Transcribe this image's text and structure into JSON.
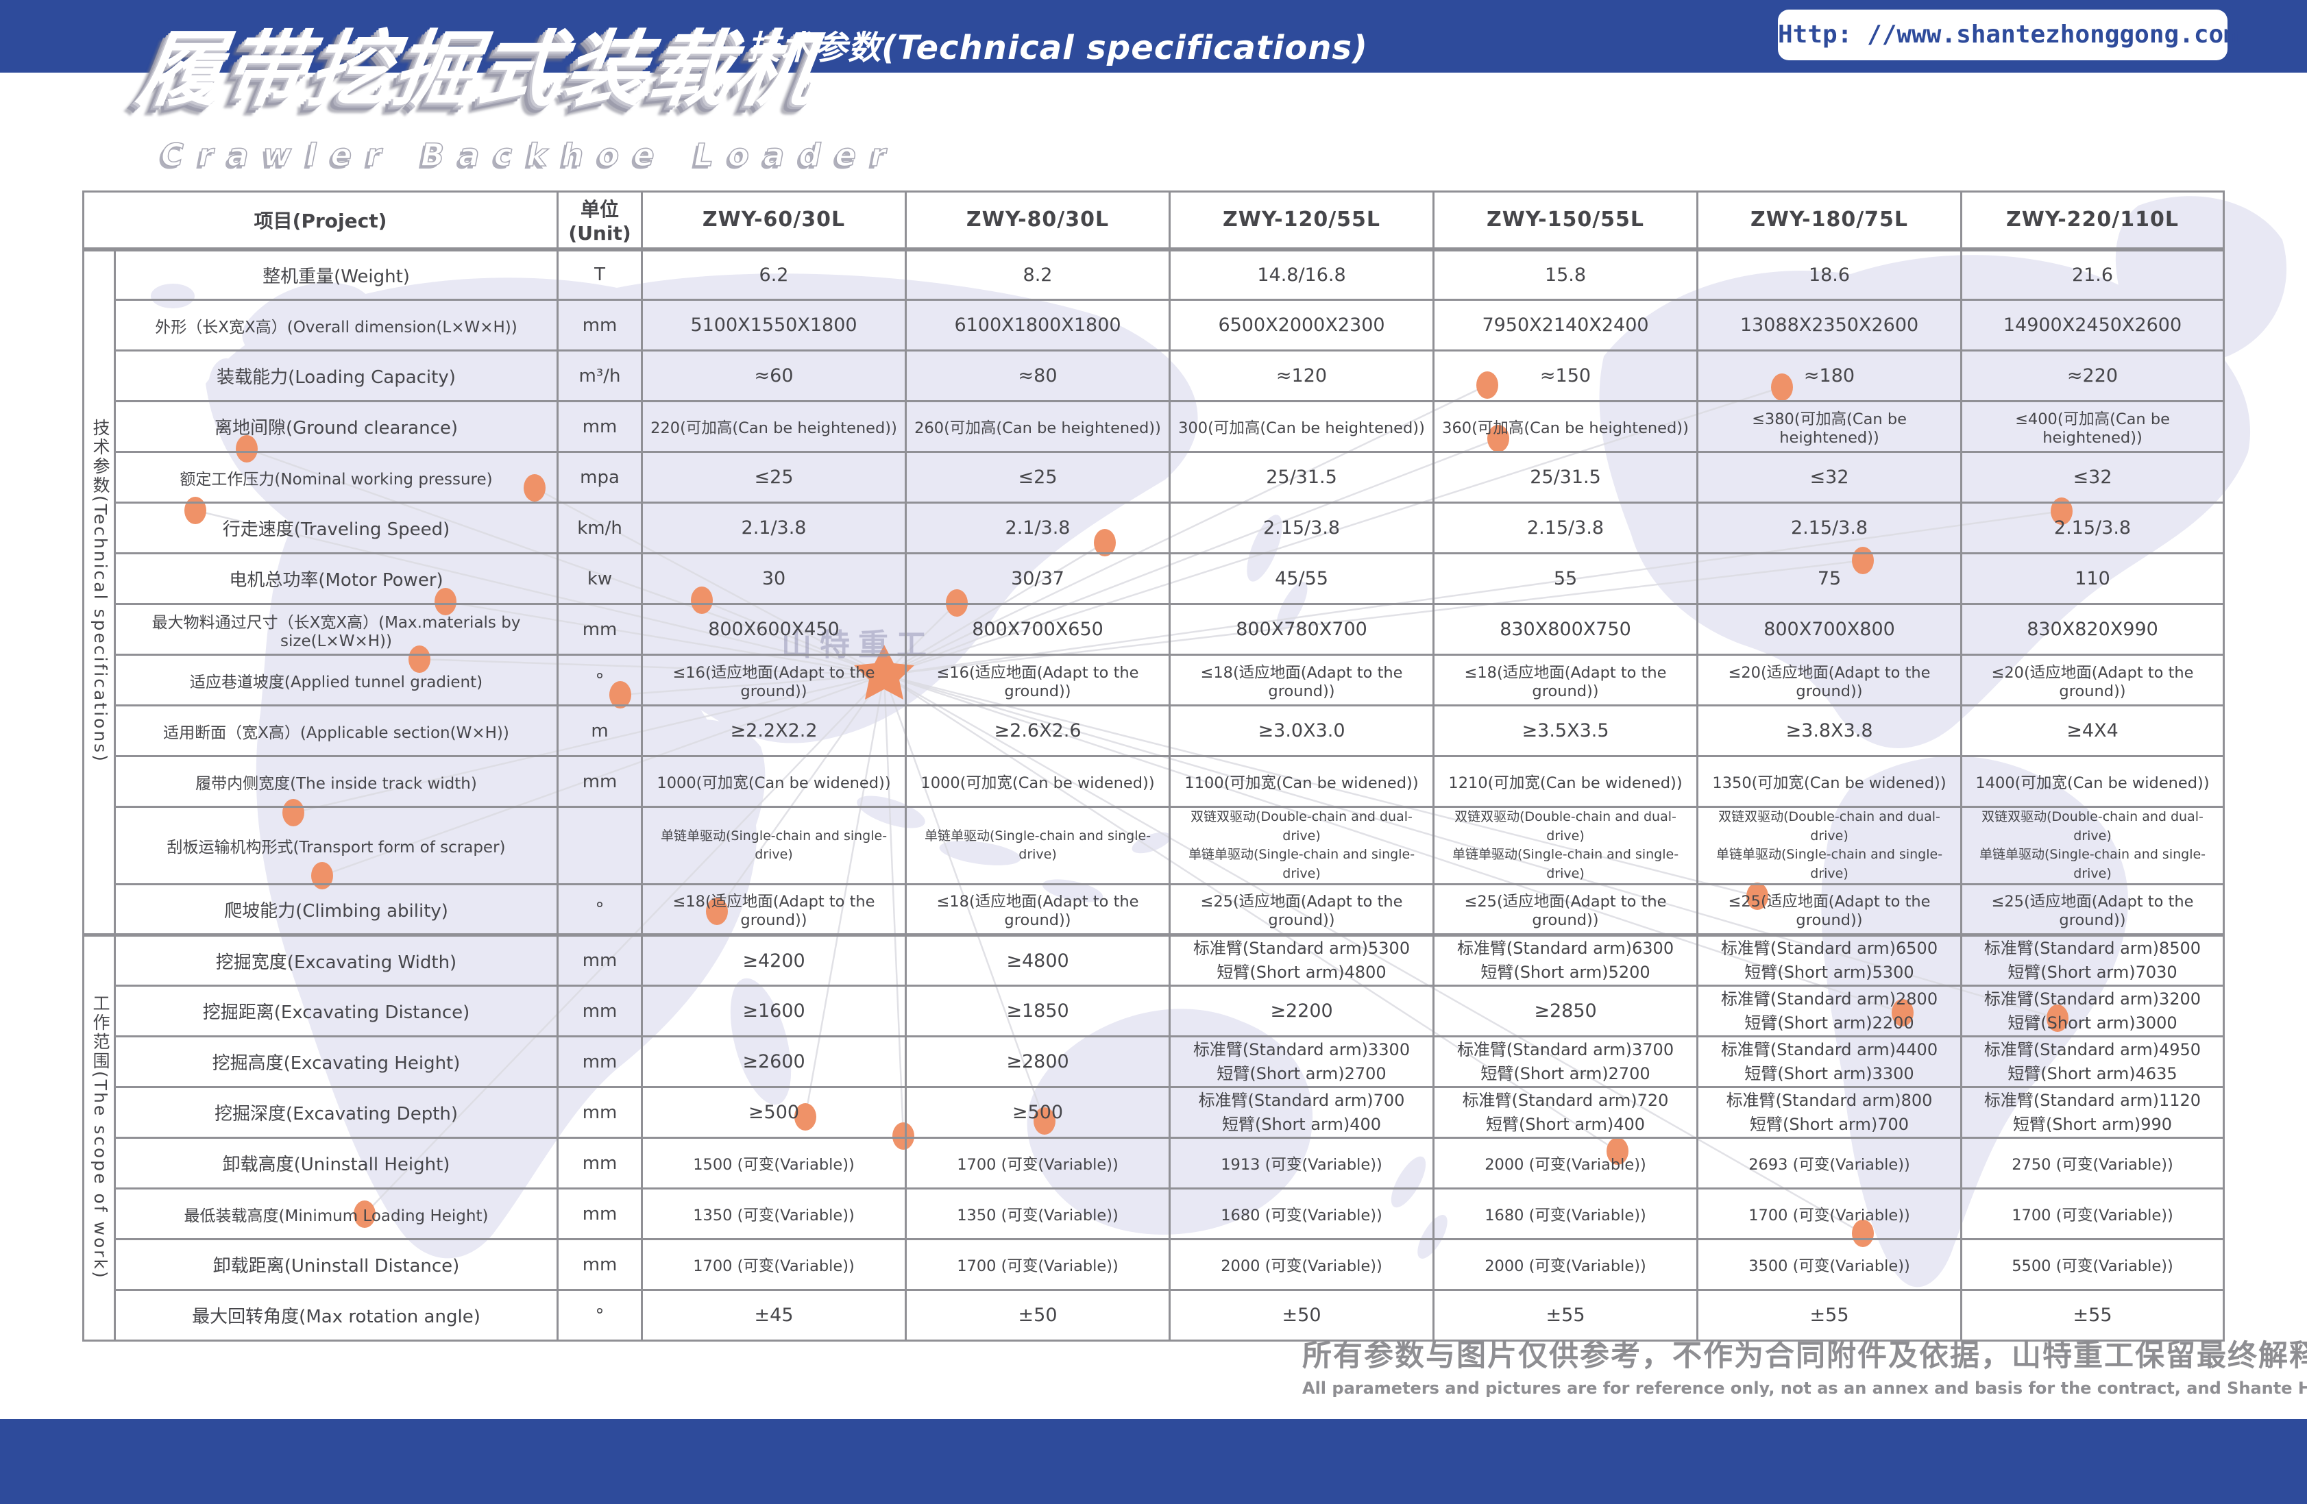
{
  "header": {
    "title_cn": "履带挖掘式装载机",
    "title_en": "Crawler Backhoe Loader",
    "subtitle": "技术参数(Technical specifications)",
    "url": "Http: //www.shantezhonggong.com"
  },
  "watermark": "山特重工",
  "table": {
    "col_project": "项目(Project)",
    "col_unit": "单位(Unit)",
    "models": [
      "ZWY-60/30L",
      "ZWY-80/30L",
      "ZWY-120/55L",
      "ZWY-150/55L",
      "ZWY-180/75L",
      "ZWY-220/110L"
    ],
    "groups": [
      {
        "label": "技术参数(Technical specifications)",
        "rows": [
          {
            "project": "整机重量(Weight)",
            "unit": "T",
            "values": [
              "6.2",
              "8.2",
              "14.8/16.8",
              "15.8",
              "18.6",
              "21.6"
            ]
          },
          {
            "project": "外形（长X宽X高）(Overall dimension(L×W×H))",
            "unit": "mm",
            "values": [
              "5100X1550X1800",
              "6100X1800X1800",
              "6500X2000X2300",
              "7950X2140X2400",
              "13088X2350X2600",
              "14900X2450X2600"
            ]
          },
          {
            "project": "装载能力(Loading Capacity)",
            "unit": "m³/h",
            "values": [
              "≈60",
              "≈80",
              "≈120",
              "≈150",
              "≈180",
              "≈220"
            ]
          },
          {
            "project": "离地间隙(Ground clearance)",
            "unit": "mm",
            "values": [
              "220(可加高(Can be heightened))",
              "260(可加高(Can be heightened))",
              "300(可加高(Can be heightened))",
              "360(可加高(Can be heightened))",
              "≤380(可加高(Can be heightened))",
              "≤400(可加高(Can be heightened))"
            ]
          },
          {
            "project": "额定工作压力(Nominal working pressure)",
            "unit": "mpa",
            "values": [
              "≤25",
              "≤25",
              "25/31.5",
              "25/31.5",
              "≤32",
              "≤32"
            ]
          },
          {
            "project": "行走速度(Traveling Speed)",
            "unit": "km/h",
            "values": [
              "2.1/3.8",
              "2.1/3.8",
              "2.15/3.8",
              "2.15/3.8",
              "2.15/3.8",
              "2.15/3.8"
            ]
          },
          {
            "project": "电机总功率(Motor Power)",
            "unit": "kw",
            "values": [
              "30",
              "30/37",
              "45/55",
              "55",
              "75",
              "110"
            ]
          },
          {
            "project": "最大物料通过尺寸（长X宽X高）(Max.materials by size(L×W×H))",
            "unit": "mm",
            "values": [
              "800X600X450",
              "800X700X650",
              "800X780X700",
              "830X800X750",
              "800X700X800",
              "830X820X990"
            ]
          },
          {
            "project": "适应巷道坡度(Applied tunnel gradient)",
            "unit": "°",
            "values": [
              "≤16(适应地面(Adapt to the ground))",
              "≤16(适应地面(Adapt to the ground))",
              "≤18(适应地面(Adapt to the ground))",
              "≤18(适应地面(Adapt to the ground))",
              "≤20(适应地面(Adapt to the ground))",
              "≤20(适应地面(Adapt to the ground))"
            ]
          },
          {
            "project": "适用断面（宽X高）(Applicable section(W×H))",
            "unit": "m",
            "values": [
              "≥2.2X2.2",
              "≥2.6X2.6",
              "≥3.0X3.0",
              "≥3.5X3.5",
              "≥3.8X3.8",
              "≥4X4"
            ]
          },
          {
            "project": "履带内侧宽度(The inside track width)",
            "unit": "mm",
            "values": [
              "1000(可加宽(Can be widened))",
              "1000(可加宽(Can be widened))",
              "1100(可加宽(Can be widened))",
              "1210(可加宽(Can be widened))",
              "1350(可加宽(Can be widened))",
              "1400(可加宽(Can be widened))"
            ]
          },
          {
            "project": "刮板运输机构形式(Transport form of scraper)",
            "unit": "",
            "values": [
              "单链单驱动(Single-chain and single-drive)",
              "单链单驱动(Single-chain and single-drive)",
              "双链双驱动(Double-chain and dual-drive)\n单链单驱动(Single-chain and single-drive)",
              "双链双驱动(Double-chain and dual-drive)\n单链单驱动(Single-chain and single-drive)",
              "双链双驱动(Double-chain and dual-drive)\n单链单驱动(Single-chain and single-drive)",
              "双链双驱动(Double-chain and dual-drive)\n单链单驱动(Single-chain and single-drive)"
            ]
          },
          {
            "project": "爬坡能力(Climbing ability)",
            "unit": "°",
            "values": [
              "≤18(适应地面(Adapt to the ground))",
              "≤18(适应地面(Adapt to the ground))",
              "≤25(适应地面(Adapt to the ground))",
              "≤25(适应地面(Adapt to the ground))",
              "≤25(适应地面(Adapt to the ground))",
              "≤25(适应地面(Adapt to the ground))"
            ]
          }
        ]
      },
      {
        "label": "工作范围(The scope of work)",
        "rows": [
          {
            "project": "挖掘宽度(Excavating Width)",
            "unit": "mm",
            "values": [
              "≥4200",
              "≥4800",
              "标准臂(Standard arm)5300\n短臂(Short arm)4800",
              "标准臂(Standard arm)6300\n短臂(Short arm)5200",
              "标准臂(Standard arm)6500\n短臂(Short arm)5300",
              "标准臂(Standard arm)8500\n短臂(Short arm)7030"
            ]
          },
          {
            "project": "挖掘距离(Excavating Distance)",
            "unit": "mm",
            "values": [
              "≥1600",
              "≥1850",
              "≥2200",
              "≥2850",
              "标准臂(Standard arm)2800\n短臂(Short arm)2200",
              "标准臂(Standard arm)3200\n短臂(Short arm)3000"
            ]
          },
          {
            "project": "挖掘高度(Excavating Height)",
            "unit": "mm",
            "values": [
              "≥2600",
              "≥2800",
              "标准臂(Standard arm)3300\n短臂(Short arm)2700",
              "标准臂(Standard arm)3700\n短臂(Short arm)2700",
              "标准臂(Standard arm)4400\n短臂(Short arm)3300",
              "标准臂(Standard arm)4950\n短臂(Short arm)4635"
            ]
          },
          {
            "project": "挖掘深度(Excavating Depth)",
            "unit": "mm",
            "values": [
              "≥500",
              "≥500",
              "标准臂(Standard arm)700\n短臂(Short arm)400",
              "标准臂(Standard arm)720\n短臂(Short arm)400",
              "标准臂(Standard arm)800\n短臂(Short arm)700",
              "标准臂(Standard arm)1120\n短臂(Short arm)990"
            ]
          },
          {
            "project": "卸载高度(Uninstall Height)",
            "unit": "mm",
            "values": [
              "1500 (可变(Variable))",
              "1700 (可变(Variable))",
              "1913 (可变(Variable))",
              "2000 (可变(Variable))",
              "2693 (可变(Variable))",
              "2750 (可变(Variable))"
            ]
          },
          {
            "project": "最低装载高度(Minimum Loading Height)",
            "unit": "mm",
            "values": [
              "1350 (可变(Variable))",
              "1350 (可变(Variable))",
              "1680 (可变(Variable))",
              "1680 (可变(Variable))",
              "1700 (可变(Variable))",
              "1700 (可变(Variable))"
            ]
          },
          {
            "project": "卸载距离(Uninstall Distance)",
            "unit": "mm",
            "values": [
              "1700 (可变(Variable))",
              "1700 (可变(Variable))",
              "2000 (可变(Variable))",
              "2000 (可变(Variable))",
              "3500 (可变(Variable))",
              "5500 (可变(Variable))"
            ]
          },
          {
            "project": "最大回转角度(Max rotation angle)",
            "unit": "°",
            "values": [
              "±45",
              "±50",
              "±50",
              "±55",
              "±55",
              "±55"
            ]
          }
        ]
      }
    ]
  },
  "footer": {
    "disclaimer_cn": "所有参数与图片仅供参考，不作为合同附件及依据，山特重工保留最终解释权。",
    "disclaimer_en": "All parameters and pictures are for reference only, not as an annex and basis for the contract, and Shante Heavy Industry reserves the right of final interpretation."
  },
  "colors": {
    "brand_blue": "#2e4b9b",
    "accent_orange": "#ef9268",
    "table_border": "#909095",
    "map_fill": "#e8e8f4",
    "text_gray": "#46464a",
    "footer_gray": "#8e8e92"
  }
}
